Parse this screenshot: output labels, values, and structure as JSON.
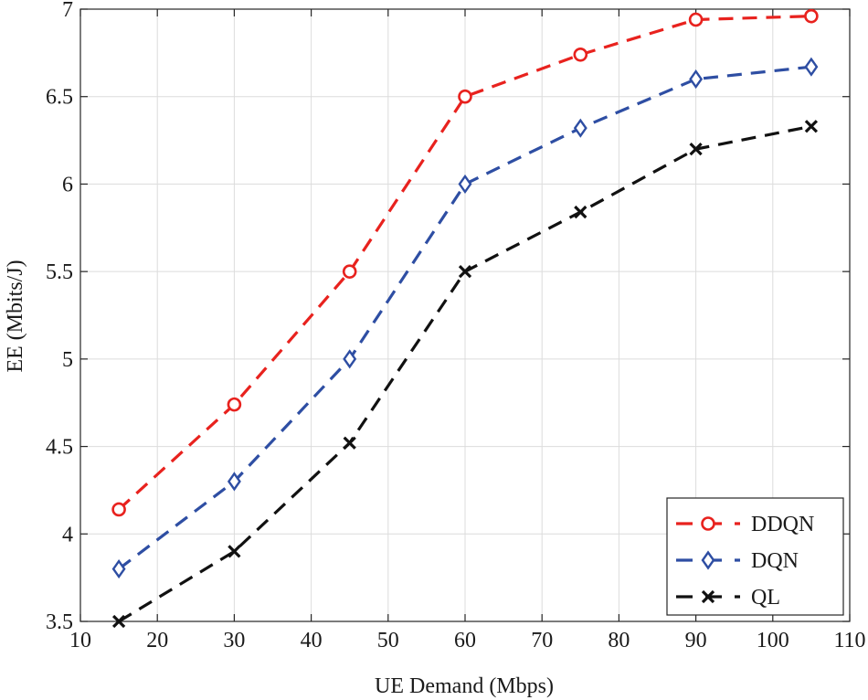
{
  "chart_data": {
    "type": "line",
    "title": "",
    "xlabel": "UE Demand (Mbps)",
    "ylabel": "EE (Mbits/J)",
    "xlim": [
      10,
      110
    ],
    "ylim": [
      3.5,
      7
    ],
    "xticks": [
      10,
      20,
      30,
      40,
      50,
      60,
      70,
      80,
      90,
      100,
      110
    ],
    "yticks": [
      3.5,
      4,
      4.5,
      5,
      5.5,
      6,
      6.5,
      7
    ],
    "xtick_labels": [
      "10",
      "20",
      "30",
      "40",
      "50",
      "60",
      "70",
      "80",
      "90",
      "100",
      "110"
    ],
    "ytick_labels": [
      "3.5",
      "4",
      "4.5",
      "5",
      "5.5",
      "6",
      "6.5",
      "7"
    ],
    "grid": true,
    "legend_position": "bottom-right",
    "x": [
      15,
      30,
      45,
      60,
      75,
      90,
      105
    ],
    "series": [
      {
        "name": "DDQN",
        "color": "#e8221e",
        "marker": "circle",
        "line_style": "dashed",
        "values": [
          4.14,
          4.74,
          5.5,
          6.5,
          6.74,
          6.94,
          6.96
        ]
      },
      {
        "name": "DQN",
        "color": "#2e4ea3",
        "marker": "diamond",
        "line_style": "dashed",
        "values": [
          3.8,
          4.3,
          5.0,
          6.0,
          6.32,
          6.6,
          6.67
        ]
      },
      {
        "name": "QL",
        "color": "#111111",
        "marker": "x",
        "line_style": "dashed",
        "values": [
          3.5,
          3.9,
          4.52,
          5.5,
          5.84,
          6.2,
          6.33
        ]
      }
    ]
  }
}
